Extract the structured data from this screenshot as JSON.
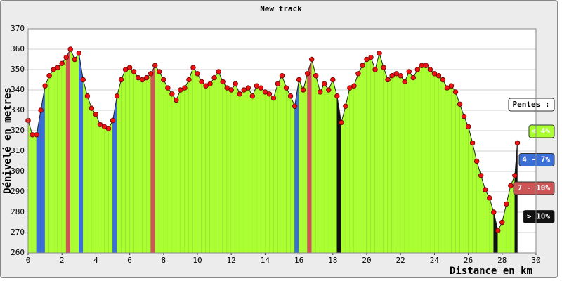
{
  "chart_data": {
    "type": "area",
    "title": "New track",
    "xlabel": "Distance en km",
    "ylabel": "Dénivelé en metres",
    "xlim": [
      0,
      30
    ],
    "xticks": [
      0,
      2,
      4,
      6,
      8,
      10,
      12,
      14,
      16,
      18,
      20,
      22,
      24,
      26,
      28,
      30
    ],
    "ylim": [
      260,
      370
    ],
    "yticks": [
      260,
      270,
      280,
      290,
      300,
      310,
      320,
      330,
      340,
      350,
      360,
      370
    ],
    "grid": true,
    "legend_title": "Pentes :",
    "slope_classes": [
      {
        "name": "< 4%",
        "color": "#aaff33"
      },
      {
        "name": "4 - 7%",
        "color": "#3a6fd8"
      },
      {
        "name": "7 - 10%",
        "color": "#cc5555"
      },
      {
        "name": "> 10%",
        "color": "#111111"
      }
    ],
    "point_color": "#ee1111",
    "x": [
      0,
      0.25,
      0.5,
      0.75,
      1,
      1.25,
      1.5,
      1.75,
      2,
      2.25,
      2.5,
      2.75,
      3,
      3.25,
      3.5,
      3.75,
      4,
      4.25,
      4.5,
      4.75,
      5,
      5.25,
      5.5,
      5.75,
      6,
      6.25,
      6.5,
      6.75,
      7,
      7.25,
      7.5,
      7.75,
      8,
      8.25,
      8.5,
      8.75,
      9,
      9.25,
      9.5,
      9.75,
      10,
      10.25,
      10.5,
      10.75,
      11,
      11.25,
      11.5,
      11.75,
      12,
      12.25,
      12.5,
      12.75,
      13,
      13.25,
      13.5,
      13.75,
      14,
      14.25,
      14.5,
      14.75,
      15,
      15.25,
      15.5,
      15.75,
      16,
      16.25,
      16.5,
      16.75,
      17,
      17.25,
      17.5,
      17.75,
      18,
      18.25,
      18.5,
      18.75,
      19,
      19.25,
      19.5,
      19.75,
      20,
      20.25,
      20.5,
      20.75,
      21,
      21.25,
      21.5,
      21.75,
      22,
      22.25,
      22.5,
      22.75,
      23,
      23.25,
      23.5,
      23.75,
      24,
      24.25,
      24.5,
      24.75,
      25,
      25.25,
      25.5,
      25.75,
      26,
      26.25,
      26.5,
      26.75,
      27,
      27.25,
      27.5,
      27.75,
      28,
      28.25,
      28.5,
      28.75,
      28.9
    ],
    "values": [
      325,
      318,
      318,
      330,
      342,
      347,
      350,
      351,
      353,
      356,
      360,
      355,
      358,
      345,
      337,
      331,
      328,
      323,
      322,
      321,
      325,
      337,
      345,
      350,
      351,
      349,
      346,
      345,
      346,
      348,
      352,
      349,
      345,
      341,
      338,
      335,
      340,
      341,
      345,
      351,
      348,
      344,
      342,
      343,
      346,
      349,
      344,
      341,
      340,
      343,
      338,
      340,
      341,
      337,
      342,
      341,
      339,
      338,
      336,
      343,
      347,
      341,
      337,
      332,
      345,
      340,
      348,
      355,
      347,
      339,
      343,
      340,
      345,
      337,
      324,
      332,
      341,
      342,
      348,
      352,
      355,
      356,
      350,
      358,
      351,
      345,
      347,
      348,
      347,
      344,
      349,
      346,
      350,
      352,
      352,
      350,
      348,
      347,
      345,
      341,
      342,
      339,
      333,
      327,
      322,
      314,
      305,
      298,
      291,
      287,
      280,
      271,
      275,
      284,
      293,
      298,
      314
    ],
    "slope_class": [
      0,
      0,
      0,
      1,
      1,
      0,
      0,
      0,
      0,
      0,
      2,
      0,
      0,
      1,
      0,
      0,
      0,
      0,
      0,
      0,
      0,
      1,
      0,
      0,
      0,
      0,
      0,
      0,
      0,
      0,
      2,
      0,
      0,
      0,
      0,
      0,
      0,
      0,
      0,
      0,
      0,
      0,
      0,
      0,
      0,
      0,
      0,
      0,
      0,
      0,
      0,
      0,
      0,
      0,
      0,
      0,
      0,
      0,
      0,
      0,
      0,
      0,
      0,
      0,
      1,
      0,
      0,
      2,
      0,
      0,
      0,
      0,
      0,
      0,
      3,
      0,
      0,
      0,
      0,
      0,
      0,
      0,
      0,
      0,
      0,
      0,
      0,
      0,
      0,
      0,
      0,
      0,
      0,
      0,
      0,
      0,
      0,
      0,
      0,
      0,
      0,
      0,
      0,
      0,
      0,
      0,
      0,
      0,
      0,
      0,
      0,
      3,
      0,
      0,
      0,
      0,
      3
    ]
  }
}
